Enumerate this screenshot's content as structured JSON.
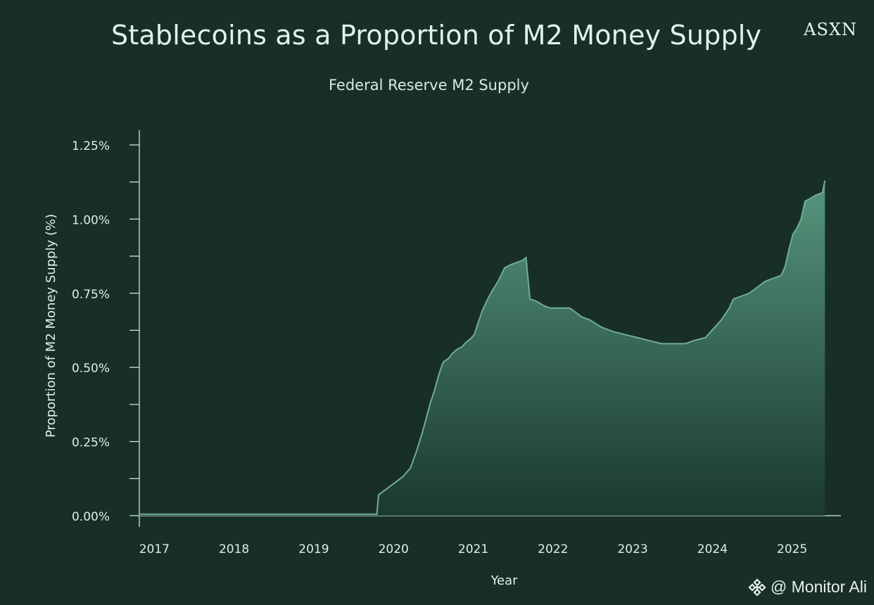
{
  "header": {
    "title": "Stablecoins as a Proportion of M2 Money Supply",
    "brand": "ASXN",
    "subtitle": "Federal Reserve M2 Supply"
  },
  "watermark": {
    "text": "@ Monitor Ali",
    "icon": "binance-diamond-icon"
  },
  "colors": {
    "background": "#182e29",
    "line": "#6fae96",
    "fill_top": "#5a9c82",
    "fill_bottom": "#1b3a31",
    "axis": "#dfeee8"
  },
  "chart_data": {
    "type": "area",
    "title": "Stablecoins as a Proportion of M2 Money Supply",
    "subtitle": "Federal Reserve M2 Supply",
    "xlabel": "Year",
    "ylabel": "Proportion of M2 Money Supply (%)",
    "x_ticks": [
      2017,
      2018,
      2019,
      2020,
      2021,
      2022,
      2023,
      2024,
      2025
    ],
    "x_tick_labels": [
      "2017",
      "2018",
      "2019",
      "2020",
      "2021",
      "2022",
      "2023",
      "2024",
      "2025"
    ],
    "y_ticks": [
      0,
      0.25,
      0.5,
      0.75,
      1.0,
      1.25
    ],
    "y_tick_labels": [
      "0.00%",
      "0.25%",
      "0.50%",
      "0.75%",
      "1.00%",
      "1.25%"
    ],
    "xlim": [
      2016.9,
      2025.7
    ],
    "ylim": [
      0,
      1.3
    ],
    "grid": false,
    "series": [
      {
        "x": [
          2016.9,
          2019.6,
          2019.88,
          2019.9,
          2019.95,
          2020.0,
          2020.1,
          2020.2,
          2020.3,
          2020.38,
          2020.45,
          2020.5,
          2020.55,
          2020.6,
          2020.65,
          2020.7,
          2020.72,
          2020.78,
          2020.82,
          2020.88,
          2020.95,
          2021.0,
          2021.05,
          2021.1,
          2021.15,
          2021.2,
          2021.27,
          2021.33,
          2021.4,
          2021.48,
          2021.55,
          2021.6,
          2021.65,
          2021.7,
          2021.75,
          2021.8,
          2021.86,
          2021.9,
          2021.93,
          2021.96,
          2022.0,
          2022.06,
          2022.15,
          2022.3,
          2022.45,
          2022.55,
          2022.7,
          2022.85,
          2023.0,
          2023.15,
          2023.3,
          2023.45,
          2023.6,
          2023.75,
          2023.85,
          2024.0,
          2024.1,
          2024.2,
          2024.3,
          2024.35,
          2024.45,
          2024.55,
          2024.65,
          2024.75,
          2024.85,
          2024.95,
          2025.0,
          2025.05,
          2025.1,
          2025.15,
          2025.2,
          2025.25,
          2025.32,
          2025.38,
          2025.43,
          2025.47,
          2025.5
        ],
        "y": [
          0.005,
          0.005,
          0.005,
          0.07,
          0.08,
          0.09,
          0.11,
          0.13,
          0.16,
          0.22,
          0.28,
          0.33,
          0.38,
          0.42,
          0.47,
          0.51,
          0.52,
          0.53,
          0.545,
          0.56,
          0.57,
          0.585,
          0.595,
          0.61,
          0.65,
          0.69,
          0.73,
          0.76,
          0.79,
          0.835,
          0.845,
          0.85,
          0.855,
          0.86,
          0.87,
          0.73,
          0.725,
          0.72,
          0.715,
          0.71,
          0.705,
          0.7,
          0.7,
          0.7,
          0.67,
          0.66,
          0.635,
          0.62,
          0.61,
          0.6,
          0.59,
          0.58,
          0.58,
          0.58,
          0.59,
          0.6,
          0.63,
          0.66,
          0.7,
          0.73,
          0.74,
          0.75,
          0.77,
          0.79,
          0.8,
          0.81,
          0.84,
          0.9,
          0.95,
          0.97,
          1.0,
          1.06,
          1.07,
          1.08,
          1.085,
          1.09,
          1.13
        ]
      }
    ]
  }
}
